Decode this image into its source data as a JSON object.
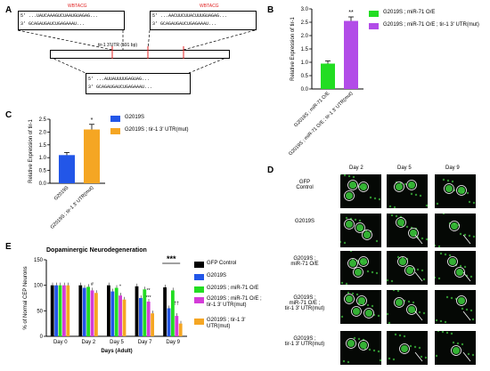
{
  "panels": {
    "a": "A",
    "b": "B",
    "c": "C",
    "d": "D",
    "e": "E"
  },
  "panel_a": {
    "site_label_1": "WBTACG",
    "site_label_2": "WBTACG",
    "utr_bar": "tir-1 3'UTR (591 bp)",
    "seq_top_left_1": "5' ...UAUCAAAGUCUAAUGUAGAG...",
    "seq_top_left_2": "3' GCAGAUGAUCUGAGAAAU...",
    "seq_top_right_1": "5' ...AACUUCUUACUUUGUAGAG...",
    "seq_top_right_2": "3' GCAGAUGAUCUGAGAAAU...",
    "seq_bottom_1": "5' ...AUUAUUUUGAGUAG...",
    "seq_bottom_2": "3' GCAGAUGAUCUGAGAAAU..."
  },
  "chart_b": {
    "type": "bar",
    "ylabel": "Relative Expression of tir-1",
    "ylim": [
      0,
      3.0
    ],
    "yticks": [
      "0.0",
      "0.5",
      "1.0",
      "1.5",
      "2.0",
      "2.5",
      "3.0"
    ],
    "categories": [
      "G2019S ; miR-71 O/E",
      "G2019S ; miR-71 O/E ; tir-1 3' UTR(mut)"
    ],
    "values": [
      0.95,
      2.55
    ],
    "errors": [
      0.1,
      0.15
    ],
    "colors": [
      "#22dd22",
      "#b24ce8"
    ],
    "significance": "**",
    "legend": [
      "G2019S ; miR-71 O/E",
      "G2019S ; miR-71 O/E ; tir-1 3' UTR(mut)"
    ]
  },
  "chart_c": {
    "type": "bar",
    "ylabel": "Relative Expression of tir-1",
    "ylim": [
      0,
      2.5
    ],
    "yticks": [
      "0.0",
      "0.5",
      "1.0",
      "1.5",
      "2.0",
      "2.5"
    ],
    "categories": [
      "G2019S",
      "G2019S ; tir-1 3' UTR(mut)"
    ],
    "values": [
      1.1,
      2.1
    ],
    "errors": [
      0.1,
      0.2
    ],
    "colors": [
      "#2256e8",
      "#f5a623"
    ],
    "significance": "*",
    "legend": [
      "G2019S",
      "G2019S ; tir-1 3' UTR(mut)"
    ]
  },
  "panel_d": {
    "days": [
      "Day 2",
      "Day 5",
      "Day 9"
    ],
    "rows": [
      "GFP Control",
      "G2019S",
      "G2019S ; miR-71 O/E",
      "G2019S ; miR-71 O/E ; tir-1 3' UTR(mut)",
      "G2019S ; tir-1 3' UTR(mut)"
    ],
    "row_lines": [
      [
        "GFP",
        "Control"
      ],
      [
        "G2019S"
      ],
      [
        "G2019S ;",
        "miR-71 O/E"
      ],
      [
        "G2019S ;",
        "miR-71 O/E ;",
        "tir-1 3' UTR(mut)"
      ],
      [
        "G2019S ;",
        "tir-1 3' UTR(mut)"
      ]
    ]
  },
  "chart_e": {
    "type": "bar",
    "title": "Dopaminergic Neurodegeneration",
    "xlabel": "Days (Adult)",
    "ylabel": "% of Normal CEP Neurons",
    "ylim": [
      0,
      150
    ],
    "yticks": [
      "0",
      "50",
      "100",
      "150"
    ],
    "categories": [
      "Day 0",
      "Day 2",
      "Day 5",
      "Day 7",
      "Day 9"
    ],
    "series": [
      {
        "name": "GFP Control",
        "color": "#000000",
        "values": [
          100,
          100,
          100,
          98,
          96
        ]
      },
      {
        "name": "G2019S",
        "color": "#2256e8",
        "values": [
          100,
          95,
          88,
          75,
          55
        ]
      },
      {
        "name": "G2019S ; miR-71 O/E",
        "color": "#22dd22",
        "values": [
          100,
          97,
          95,
          92,
          90
        ]
      },
      {
        "name": "G2019S ; miR-71 O/E ; tir-1 3' UTR(mut)",
        "color": "#d43cd8",
        "values": [
          100,
          90,
          80,
          68,
          40
        ]
      },
      {
        "name": "G2019S ; tir-1 3' UTR(mut)",
        "color": "#f5a623",
        "values": [
          100,
          85,
          72,
          45,
          25
        ]
      }
    ],
    "significance_top": "***",
    "marks": [
      "#",
      "*",
      "**",
      "***",
      "††"
    ]
  }
}
